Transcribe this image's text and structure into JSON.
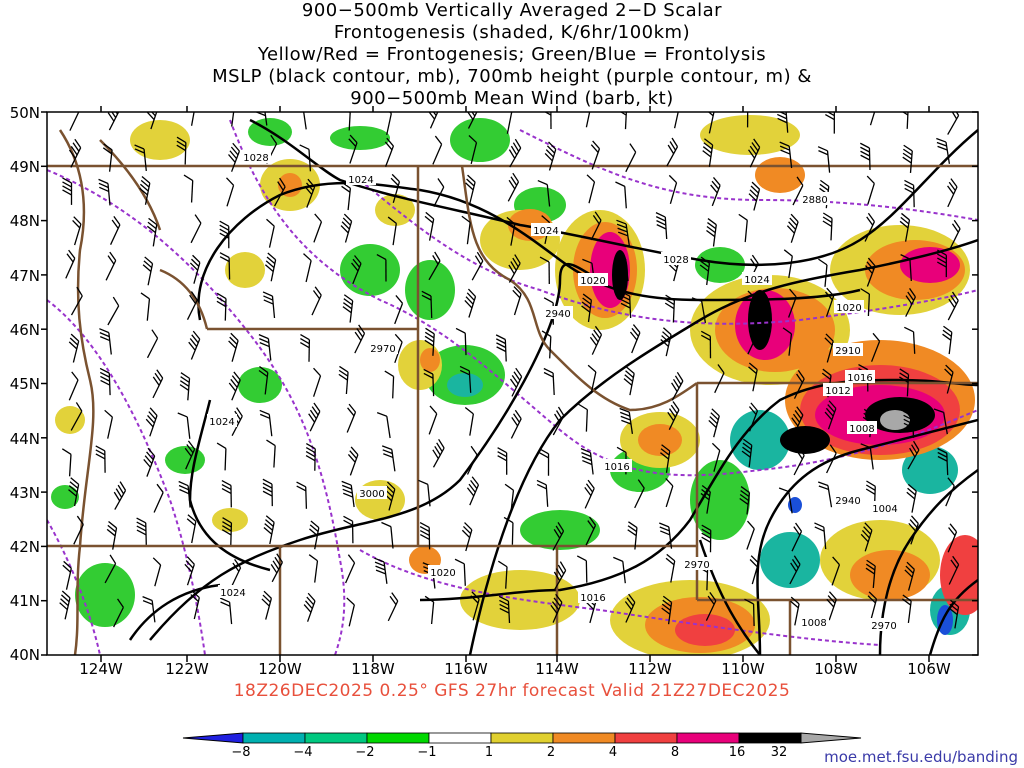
{
  "title_lines": [
    "900−500mb Vertically Averaged 2−D Scalar",
    "Frontogenesis (shaded, K/6hr/100km)",
    "Yellow/Red = Frontogenesis;  Green/Blue = Frontolysis",
    "MSLP (black contour, mb), 700mb height (purple contour, m) &",
    "900−500mb Mean Wind (barb, kt)"
  ],
  "lat_labels": [
    "50N",
    "49N",
    "48N",
    "47N",
    "46N",
    "45N",
    "44N",
    "43N",
    "42N",
    "41N",
    "40N"
  ],
  "lon_labels": [
    "124W",
    "122W",
    "120W",
    "118W",
    "116W",
    "114W",
    "112W",
    "110W",
    "108W",
    "106W"
  ],
  "caption": "18Z26DEC2025 0.25° GFS 27hr forecast Valid 21Z27DEC2025",
  "colorbar": {
    "labels": [
      "−8",
      "−4",
      "−2",
      "−1",
      "1",
      "2",
      "4",
      "8",
      "16",
      "32"
    ],
    "colors": [
      "#2020e0",
      "#00b0b0",
      "#00c880",
      "#00d800",
      "#ffffff",
      "#e0d030",
      "#f08a24",
      "#f04040",
      "#e8007a",
      "#000000",
      "#a8a8a8"
    ]
  },
  "colors": {
    "green": "#33cc33",
    "teal": "#1ab5a0",
    "blue": "#1a4fd8",
    "yellow": "#e2d23a",
    "orange": "#f08a24",
    "red": "#f04040",
    "magenta": "#e8007a",
    "black": "#000000",
    "gray": "#a8a8a8",
    "purple": "#9933cc",
    "brown": "#7a5230"
  },
  "mslp_labels": [
    "1028",
    "1024",
    "1024",
    "1020",
    "1028",
    "1024",
    "1020",
    "1024",
    "1016",
    "1012",
    "1008",
    "1016",
    "1020",
    "1016",
    "1024",
    "1008",
    "1004"
  ],
  "height_labels": [
    "2880",
    "2940",
    "2970",
    "2910",
    "3000",
    "2940",
    "2970",
    "2970"
  ],
  "credit": "moe.met.fsu.edu/banding"
}
